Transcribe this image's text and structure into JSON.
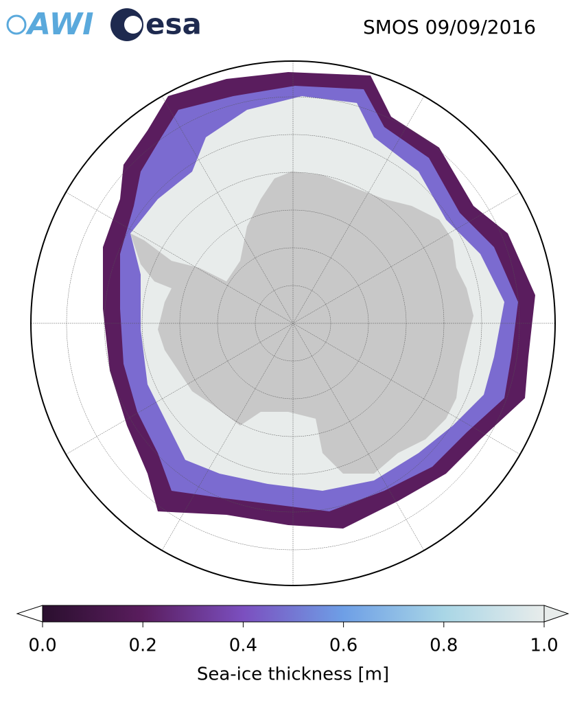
{
  "logos": {
    "awi": "AWI",
    "esa": "esa"
  },
  "title": "SMOS 09/09/2016",
  "colorbar": {
    "label": "Sea-ice thickness [m]",
    "lim": [
      0,
      1
    ],
    "ticks": [
      {
        "value": 0,
        "label": "0.0"
      },
      {
        "value": 0.2,
        "label": "0.2"
      },
      {
        "value": 0.4,
        "label": "0.4"
      },
      {
        "value": 0.6,
        "label": "0.6"
      },
      {
        "value": 0.8,
        "label": "0.8"
      },
      {
        "value": 1,
        "label": "1.0"
      }
    ],
    "colors": [
      "#2a0f2e",
      "#5a1d5e",
      "#7b4fbf",
      "#6e9fe6",
      "#a9d6e6",
      "#e8eceb"
    ]
  }
}
